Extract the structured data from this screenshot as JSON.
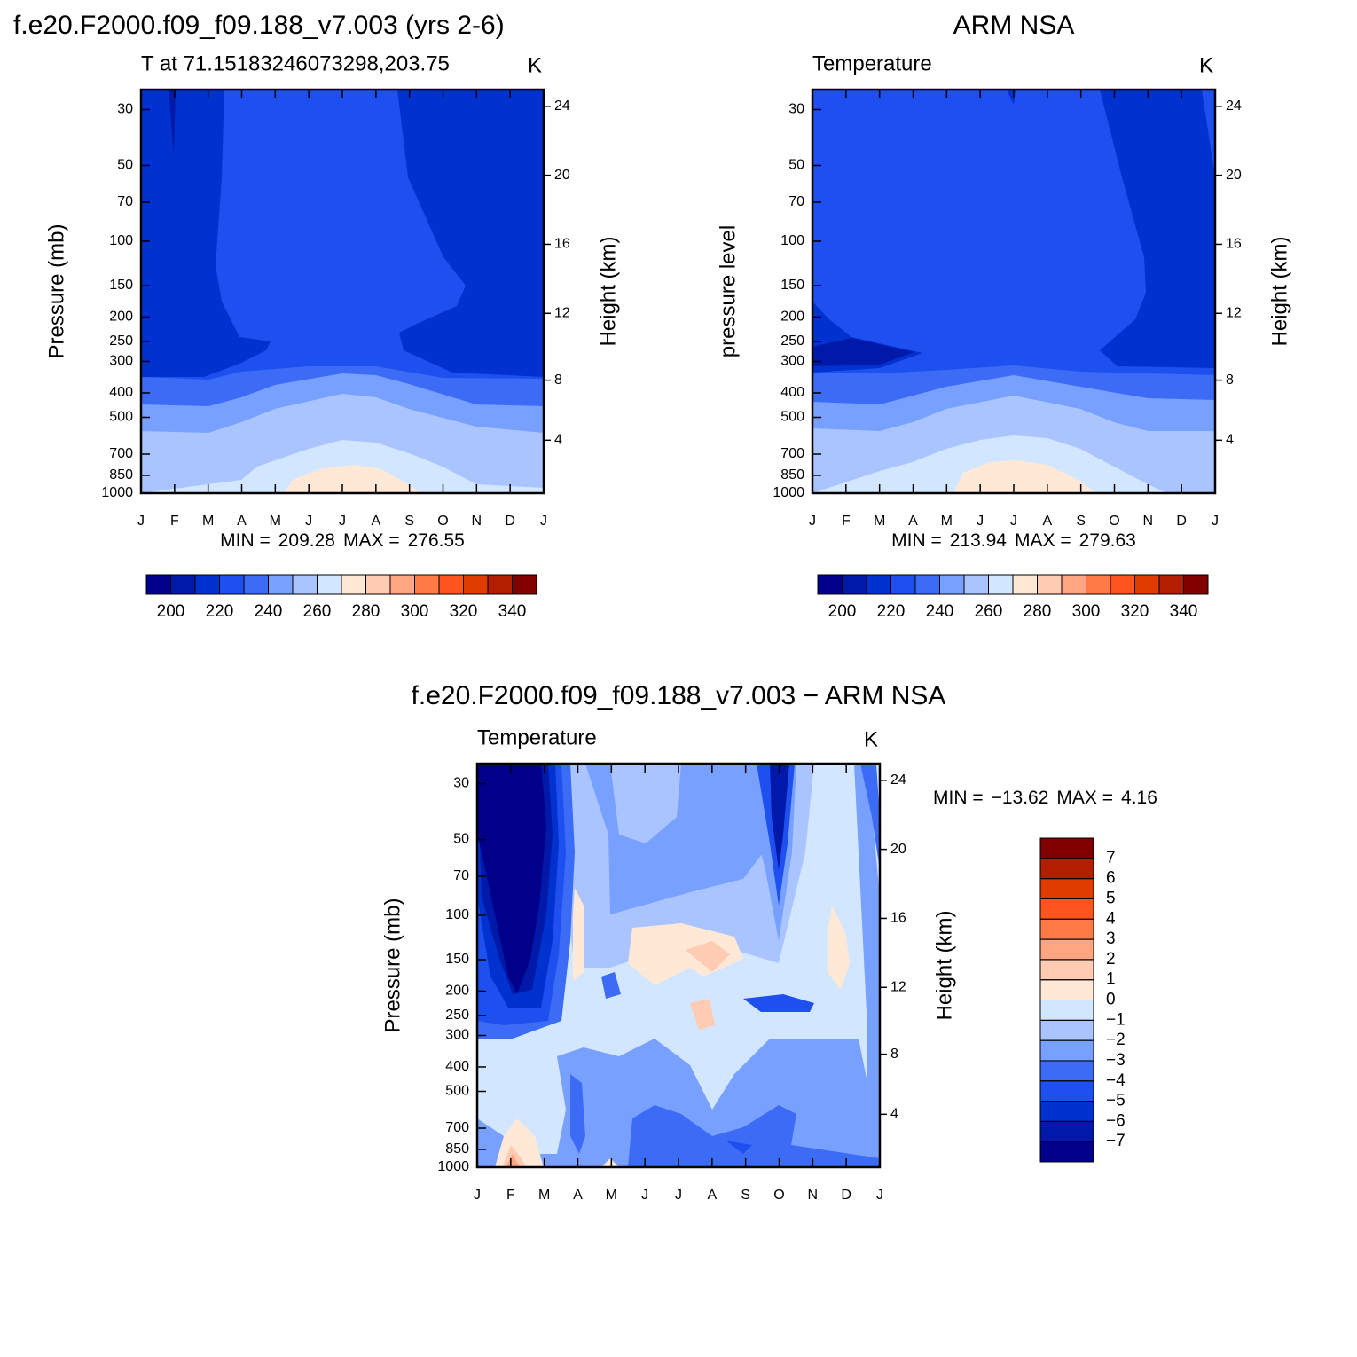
{
  "chart_data": [
    {
      "type": "contour",
      "title": "f.e20.F2000.f09_f09.188_v7.003 (yrs 2-6)",
      "subtitle": "T at 71.15183246073298,203.75",
      "units": "K",
      "ylabel": "Pressure (mb)",
      "y2label": "Height (km)",
      "categories": [
        "J",
        "F",
        "M",
        "A",
        "M",
        "J",
        "J",
        "A",
        "S",
        "O",
        "N",
        "D",
        "J"
      ],
      "ylim": [
        1000,
        25
      ],
      "log_scale": true,
      "yticks": [
        30,
        50,
        70,
        100,
        150,
        200,
        250,
        300,
        400,
        500,
        700,
        850,
        1000
      ],
      "y2ticks": [
        4,
        8,
        12,
        16,
        20,
        24
      ],
      "min_label": "MIN =",
      "min": 209.28,
      "max_label": "MAX =",
      "max": 276.55,
      "colorbar": {
        "orientation": "horizontal",
        "lim": [
          190,
          350
        ],
        "ticks": [
          200,
          220,
          240,
          260,
          280,
          300,
          320,
          340
        ],
        "colors": [
          "#00008b",
          "#0019a8",
          "#0032d0",
          "#1e50f0",
          "#3c6cf5",
          "#78a0ff",
          "#aac4ff",
          "#d3e6ff",
          "#ffe8d6",
          "#ffcbb2",
          "#ffa582",
          "#ff7a46",
          "#ff541e",
          "#e13c00",
          "#b31e00",
          "#800000"
        ]
      }
    },
    {
      "type": "contour",
      "title": "ARM NSA",
      "subtitle": "Temperature",
      "units": "K",
      "ylabel": "pressure level",
      "y2label": "Height (km)",
      "categories": [
        "J",
        "F",
        "M",
        "A",
        "M",
        "J",
        "J",
        "A",
        "S",
        "O",
        "N",
        "D",
        "J"
      ],
      "ylim": [
        1000,
        25
      ],
      "log_scale": true,
      "yticks": [
        30,
        50,
        70,
        100,
        150,
        200,
        250,
        300,
        400,
        500,
        700,
        850,
        1000
      ],
      "y2ticks": [
        4,
        8,
        12,
        16,
        20,
        24
      ],
      "min_label": "MIN =",
      "min": 213.94,
      "max_label": "MAX =",
      "max": 279.63,
      "colorbar": {
        "orientation": "horizontal",
        "lim": [
          190,
          350
        ],
        "ticks": [
          200,
          220,
          240,
          260,
          280,
          300,
          320,
          340
        ],
        "colors": [
          "#00008b",
          "#0019a8",
          "#0032d0",
          "#1e50f0",
          "#3c6cf5",
          "#78a0ff",
          "#aac4ff",
          "#d3e6ff",
          "#ffe8d6",
          "#ffcbb2",
          "#ffa582",
          "#ff7a46",
          "#ff541e",
          "#e13c00",
          "#b31e00",
          "#800000"
        ]
      }
    },
    {
      "type": "contour",
      "title": "f.e20.F2000.f09_f09.188_v7.003 − ARM NSA",
      "subtitle": "Temperature",
      "units": "K",
      "ylabel": "Pressure (mb)",
      "y2label": "Height (km)",
      "categories": [
        "J",
        "F",
        "M",
        "A",
        "M",
        "J",
        "J",
        "A",
        "S",
        "O",
        "N",
        "D",
        "J"
      ],
      "ylim": [
        1000,
        25
      ],
      "log_scale": true,
      "yticks": [
        30,
        50,
        70,
        100,
        150,
        200,
        250,
        300,
        400,
        500,
        700,
        850,
        1000
      ],
      "y2ticks": [
        4,
        8,
        12,
        16,
        20,
        24
      ],
      "min_label": "MIN =",
      "min": {
        "value": -13.62,
        "label": "−13.62"
      },
      "max_label": "MAX =",
      "max": 4.16,
      "colorbar": {
        "orientation": "vertical",
        "lim": [
          -8,
          8
        ],
        "ticks": [
          7,
          6,
          5,
          4,
          3,
          2,
          1,
          0,
          {
            "value": -1,
            "label": "−1"
          },
          {
            "value": -2,
            "label": "−2"
          },
          {
            "value": -3,
            "label": "−3"
          },
          {
            "value": -4,
            "label": "−4"
          },
          {
            "value": -5,
            "label": "−5"
          },
          {
            "value": -6,
            "label": "−6"
          },
          {
            "value": -7,
            "label": "−7"
          }
        ],
        "colors": [
          "#00008b",
          "#0019a8",
          "#0032d0",
          "#1e50f0",
          "#3c6cf5",
          "#78a0ff",
          "#aac4ff",
          "#d3e6ff",
          "#ffe8d6",
          "#ffcbb2",
          "#ffa582",
          "#ff7a46",
          "#ff541e",
          "#e13c00",
          "#b31e00",
          "#800000"
        ]
      }
    }
  ]
}
